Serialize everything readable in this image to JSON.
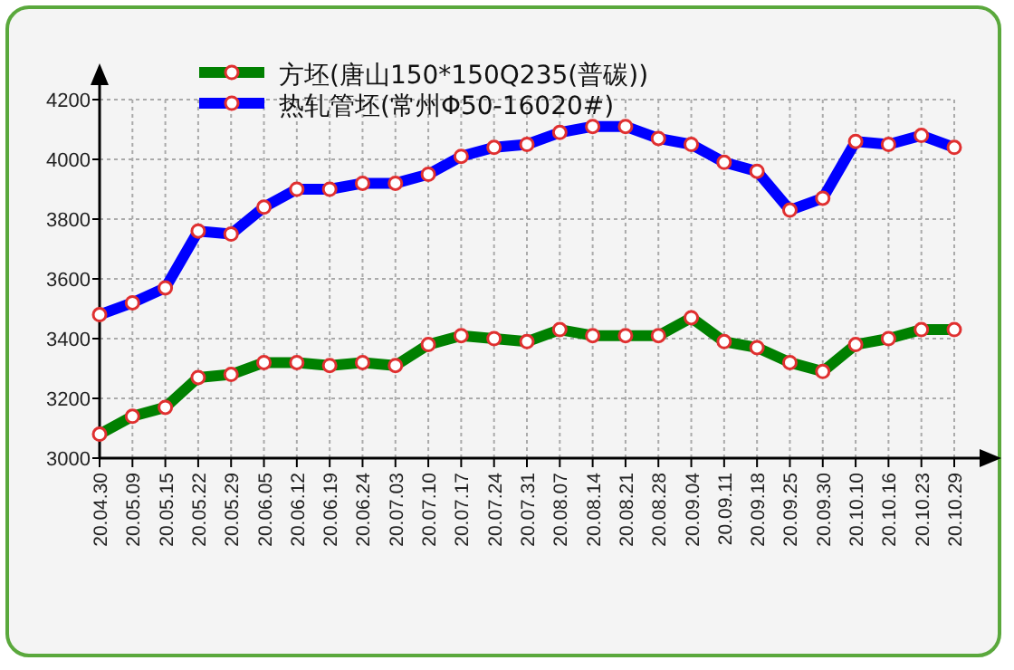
{
  "chart_data": {
    "type": "line",
    "categories": [
      "20.04.30",
      "20.05.09",
      "20.05.15",
      "20.05.22",
      "20.05.29",
      "20.06.05",
      "20.06.12",
      "20.06.19",
      "20.06.24",
      "20.07.03",
      "20.07.10",
      "20.07.17",
      "20.07.24",
      "20.07.31",
      "20.08.07",
      "20.08.14",
      "20.08.21",
      "20.08.28",
      "20.09.04",
      "20.09.11",
      "20.09.18",
      "20.09.25",
      "20.09.30",
      "20.10.10",
      "20.10.16",
      "20.10.23",
      "20.10.29"
    ],
    "series": [
      {
        "name": "方坯(唐山150*150Q235(普碳))",
        "color": "#008000",
        "values": [
          3080,
          3140,
          3170,
          3270,
          3280,
          3320,
          3320,
          3310,
          3320,
          3310,
          3380,
          3410,
          3400,
          3390,
          3430,
          3410,
          3410,
          3410,
          3470,
          3390,
          3370,
          3320,
          3290,
          3380,
          3400,
          3430,
          3430
        ]
      },
      {
        "name": "热轧管坯(常州Φ50-16020#)",
        "color": "#0000ff",
        "values": [
          3480,
          3520,
          3570,
          3760,
          3750,
          3840,
          3900,
          3900,
          3920,
          3920,
          3950,
          4010,
          4040,
          4050,
          4090,
          4110,
          4110,
          4070,
          4050,
          3990,
          3960,
          3830,
          3870,
          4060,
          4050,
          4080,
          4040
        ]
      }
    ],
    "ylim": [
      3000,
      4200
    ],
    "yticks": [
      3000,
      3200,
      3400,
      3600,
      3800,
      4000,
      4200
    ],
    "grid": true,
    "legend": "top",
    "marker": "circle",
    "line_style": "solid"
  }
}
